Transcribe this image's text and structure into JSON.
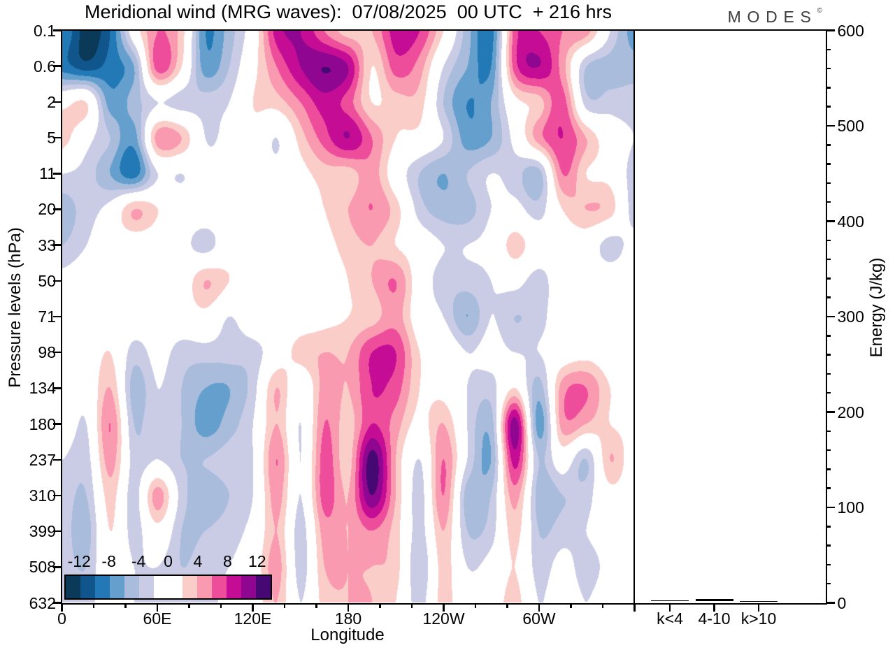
{
  "title": "Meridional wind (MRG waves):  07/08/2025  00 UTC  + 216 hrs",
  "logo": {
    "text": "MODES",
    "mark": "©"
  },
  "axes": {
    "pressure_label": "Pressure levels (hPa)",
    "longitude_label": "Longitude",
    "energy_label": "Energy (J/kg)",
    "pressure_ticks": [
      "0.1",
      "0.6",
      "2",
      "5",
      "11",
      "20",
      "33",
      "50",
      "71",
      "98",
      "134",
      "180",
      "237",
      "310",
      "399",
      "508",
      "632"
    ],
    "longitude_ticks": [
      {
        "deg": 0,
        "label": "0"
      },
      {
        "deg": 60,
        "label": "60E"
      },
      {
        "deg": 120,
        "label": "120E"
      },
      {
        "deg": 180,
        "label": "180"
      },
      {
        "deg": 240,
        "label": "120W"
      },
      {
        "deg": 300,
        "label": "60W"
      }
    ],
    "longitude_minor_step_deg": 20,
    "energy_ticks": [
      0,
      100,
      200,
      300,
      400,
      500,
      600
    ],
    "energy_minor_step": 20,
    "energy_range": [
      0,
      600
    ]
  },
  "colorbar": {
    "tick_labels": [
      "-12",
      "-8",
      "-4",
      "0",
      "4",
      "8",
      "12"
    ],
    "level_min": -14,
    "level_max": 14,
    "level_step": 2,
    "colors": [
      "#0a3a58",
      "#10568c",
      "#2279b5",
      "#649fce",
      "#a9bcdc",
      "#cacce6",
      "#ffffff",
      "#ffffff",
      "#fbcdc9",
      "#f99ab0",
      "#ee4d9b",
      "#c40d94",
      "#8f0690",
      "#460872"
    ]
  },
  "right_panel": {
    "categories": [
      "k<4",
      "4-10",
      "k>10"
    ],
    "values_jkg": [
      1.2,
      2.6,
      0.6
    ]
  },
  "chart_data": [
    {
      "type": "heatmap",
      "subtype": "filled-contour",
      "title": "Meridional wind (MRG waves):  07/08/2025  00 UTC  + 216 hrs",
      "xlabel": "Longitude",
      "ylabel": "Pressure levels (hPa)",
      "x_longitude_deg": [
        0,
        15,
        30,
        45,
        60,
        75,
        90,
        105,
        120,
        135,
        150,
        165,
        180,
        195,
        210,
        225,
        240,
        255,
        270,
        285,
        300,
        315,
        330,
        345,
        360
      ],
      "y_pressure_hpa": [
        0.1,
        0.6,
        2,
        5,
        11,
        20,
        33,
        50,
        71,
        98,
        134,
        180,
        237,
        310,
        399,
        508,
        632
      ],
      "contour_levels": [
        -14,
        -12,
        -10,
        -8,
        -6,
        -4,
        -2,
        0,
        2,
        4,
        6,
        8,
        10,
        12,
        14
      ],
      "values": [
        [
          -8,
          -13,
          -10,
          0,
          6,
          3,
          -8,
          -5,
          0,
          9,
          10,
          6,
          3,
          4,
          9,
          8,
          2,
          -5,
          -9,
          7,
          8,
          6,
          5,
          -2,
          -7
        ],
        [
          -9,
          -11,
          -9,
          -6,
          7,
          2,
          -7,
          -4,
          1,
          6,
          10,
          12,
          10,
          2,
          7,
          5,
          -2,
          -6,
          -8,
          7,
          10,
          5,
          -4,
          -5,
          -5
        ],
        [
          1,
          2,
          -7,
          -5,
          -2,
          -3,
          -3,
          -2,
          2,
          3,
          6,
          9,
          7,
          2,
          3,
          3,
          -4,
          -8,
          -6,
          1,
          3,
          7,
          -3,
          -3,
          -3
        ],
        [
          3,
          -1,
          -4,
          -7,
          5,
          4,
          -2,
          -1,
          1,
          -2,
          3,
          7,
          10,
          6,
          2,
          1,
          -2,
          -7,
          -6,
          -1,
          5,
          8,
          4,
          0,
          -2
        ],
        [
          -2,
          -3,
          -6,
          -9,
          -2,
          -2,
          -1,
          -1,
          0,
          -1,
          1,
          3,
          3,
          5,
          0,
          -4,
          -6,
          -4,
          -2,
          -3,
          -5,
          6,
          2,
          1,
          -3
        ],
        [
          -5,
          -3,
          -1,
          4,
          2,
          0,
          0,
          0,
          0,
          0,
          0,
          2,
          4,
          6,
          3,
          -3,
          -5,
          -5,
          -2,
          -1,
          -3,
          2,
          4,
          3,
          -3
        ],
        [
          -4,
          -2,
          0,
          0,
          0,
          -1,
          -3,
          0,
          0,
          0,
          0,
          1,
          3,
          4,
          2,
          0,
          -2,
          -2,
          -1,
          3,
          0,
          0,
          0,
          -3,
          -1
        ],
        [
          -1,
          0,
          0,
          0,
          0,
          0,
          4,
          2,
          0,
          0,
          0,
          0,
          2,
          4,
          6,
          0,
          -3,
          -3,
          -2,
          -1,
          -3,
          0,
          0,
          0,
          0
        ],
        [
          0,
          0,
          1,
          0,
          0,
          0,
          1,
          -2,
          0,
          0,
          0,
          1,
          2,
          3,
          5,
          0,
          -2,
          -6,
          -2,
          -4,
          -3,
          0,
          0,
          0,
          -2
        ],
        [
          0,
          0,
          2,
          -3,
          -1,
          -3,
          -3,
          -3,
          -3,
          0,
          3,
          4,
          4,
          8,
          8,
          2,
          1,
          -2,
          -1,
          -2,
          -2,
          0,
          1,
          0,
          0
        ],
        [
          -1,
          -1,
          4,
          -5,
          -2,
          -4,
          -6,
          -6,
          -3,
          4,
          -1,
          5,
          4,
          8,
          7,
          2,
          1,
          -2,
          -3,
          2,
          -5,
          5,
          6,
          2,
          0
        ],
        [
          0,
          -2,
          6,
          -4,
          -2,
          -4,
          -7,
          -5,
          -2,
          4,
          -2,
          6,
          3,
          8,
          5,
          1,
          4,
          -2,
          -5,
          11,
          -7,
          5,
          4,
          2,
          1
        ],
        [
          -2,
          -3,
          5,
          -3,
          -2,
          -4,
          -4,
          -3,
          -2,
          6,
          -2,
          7,
          3,
          13,
          4,
          -2,
          6,
          -2,
          -6,
          9,
          -4,
          0,
          -4,
          4,
          0
        ],
        [
          -3,
          -4,
          3,
          -3,
          5,
          -3,
          -5,
          -4,
          -2,
          5,
          -2,
          7,
          4,
          12,
          4,
          -3,
          6,
          -5,
          -4,
          5,
          -5,
          -4,
          -3,
          1,
          0
        ],
        [
          -3,
          -5,
          2,
          -3,
          1,
          -4,
          -4,
          -3,
          -1,
          4,
          -3,
          5,
          4,
          6,
          3,
          -3,
          4,
          -4,
          -3,
          3,
          -4,
          -3,
          -2,
          0,
          0
        ],
        [
          -3,
          -4,
          1,
          -2,
          -2,
          -4,
          -3,
          -2,
          0,
          5,
          -3,
          4,
          4,
          4,
          3,
          -4,
          3,
          -2,
          -1,
          2,
          -3,
          -1,
          -3,
          -1,
          0
        ],
        [
          -2,
          -3,
          0,
          -2,
          -3,
          -3,
          -3,
          -1,
          0,
          4,
          -2,
          3,
          4,
          4,
          2,
          -3,
          3,
          -1,
          0,
          3,
          -2,
          0,
          -2,
          0,
          0
        ]
      ]
    },
    {
      "type": "bar",
      "categories": [
        "k<4",
        "4-10",
        "k>10"
      ],
      "values": [
        1.2,
        2.6,
        0.6
      ],
      "ylabel": "Energy (J/kg)",
      "ylim": [
        0,
        600
      ]
    }
  ]
}
